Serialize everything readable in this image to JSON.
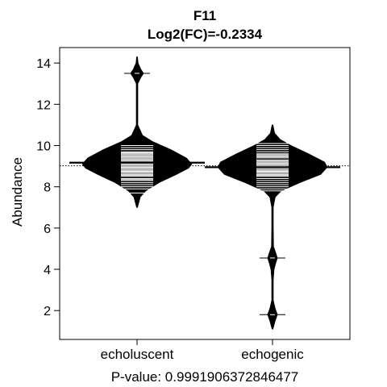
{
  "chart_data": {
    "type": "beanplot",
    "title": "F11",
    "subtitle": "Log2(FC)=-0.2334",
    "ylabel": "Abundance",
    "footer": "P-value: 0.9991906372846477",
    "ylim": [
      0.6,
      14.75
    ],
    "yticks": [
      2,
      4,
      6,
      8,
      10,
      12,
      14
    ],
    "overall_mean": 9.02,
    "categories": [
      "echoluscent",
      "echogenic"
    ],
    "groups": [
      {
        "name": "echoluscent",
        "mean": 9.17,
        "outliers": [
          13.5
        ],
        "density_y": [
          7.0,
          7.5,
          7.8,
          8.2,
          8.6,
          8.9,
          9.1,
          9.4,
          9.8,
          10.2,
          10.5,
          11.0,
          12.0,
          13.0,
          13.3,
          13.5,
          13.7,
          14.0,
          14.3
        ],
        "density_w": [
          0.0,
          0.06,
          0.16,
          0.4,
          0.72,
          0.94,
          1.0,
          0.9,
          0.62,
          0.28,
          0.1,
          0.015,
          0.015,
          0.015,
          0.07,
          0.12,
          0.07,
          0.02,
          0.0
        ],
        "strips": [
          7.7,
          7.9,
          8.0,
          8.1,
          8.2,
          8.3,
          8.35,
          8.4,
          8.5,
          8.55,
          8.6,
          8.65,
          8.7,
          8.75,
          8.8,
          8.85,
          8.9,
          8.95,
          9.0,
          9.05,
          9.1,
          9.15,
          9.2,
          9.25,
          9.3,
          9.35,
          9.4,
          9.45,
          9.5,
          9.55,
          9.6,
          9.65,
          9.7,
          9.8,
          9.9,
          10.0
        ]
      },
      {
        "name": "echogenic",
        "mean": 8.95,
        "outliers": [
          4.55,
          1.8
        ],
        "density_y": [
          1.1,
          1.5,
          1.8,
          2.1,
          2.5,
          3.5,
          4.0,
          4.3,
          4.55,
          4.8,
          5.1,
          6.0,
          7.0,
          7.5,
          7.8,
          8.2,
          8.6,
          8.95,
          9.2,
          9.6,
          10.0,
          10.3,
          10.6,
          11.0
        ],
        "density_w": [
          0.0,
          0.05,
          0.09,
          0.05,
          0.015,
          0.015,
          0.03,
          0.06,
          0.09,
          0.06,
          0.02,
          0.015,
          0.015,
          0.05,
          0.16,
          0.5,
          0.88,
          1.0,
          0.95,
          0.66,
          0.34,
          0.14,
          0.04,
          0.0
        ],
        "strips": [
          7.8,
          7.9,
          8.0,
          8.1,
          8.2,
          8.3,
          8.4,
          8.5,
          8.55,
          8.6,
          8.65,
          8.7,
          8.75,
          8.8,
          8.85,
          8.9,
          8.95,
          9.0,
          9.05,
          9.1,
          9.15,
          9.2,
          9.25,
          9.3,
          9.4,
          9.45,
          9.5,
          9.55,
          9.6,
          9.7,
          9.8,
          9.9,
          10.0,
          10.1
        ]
      }
    ],
    "grid": false,
    "legend": "none"
  }
}
